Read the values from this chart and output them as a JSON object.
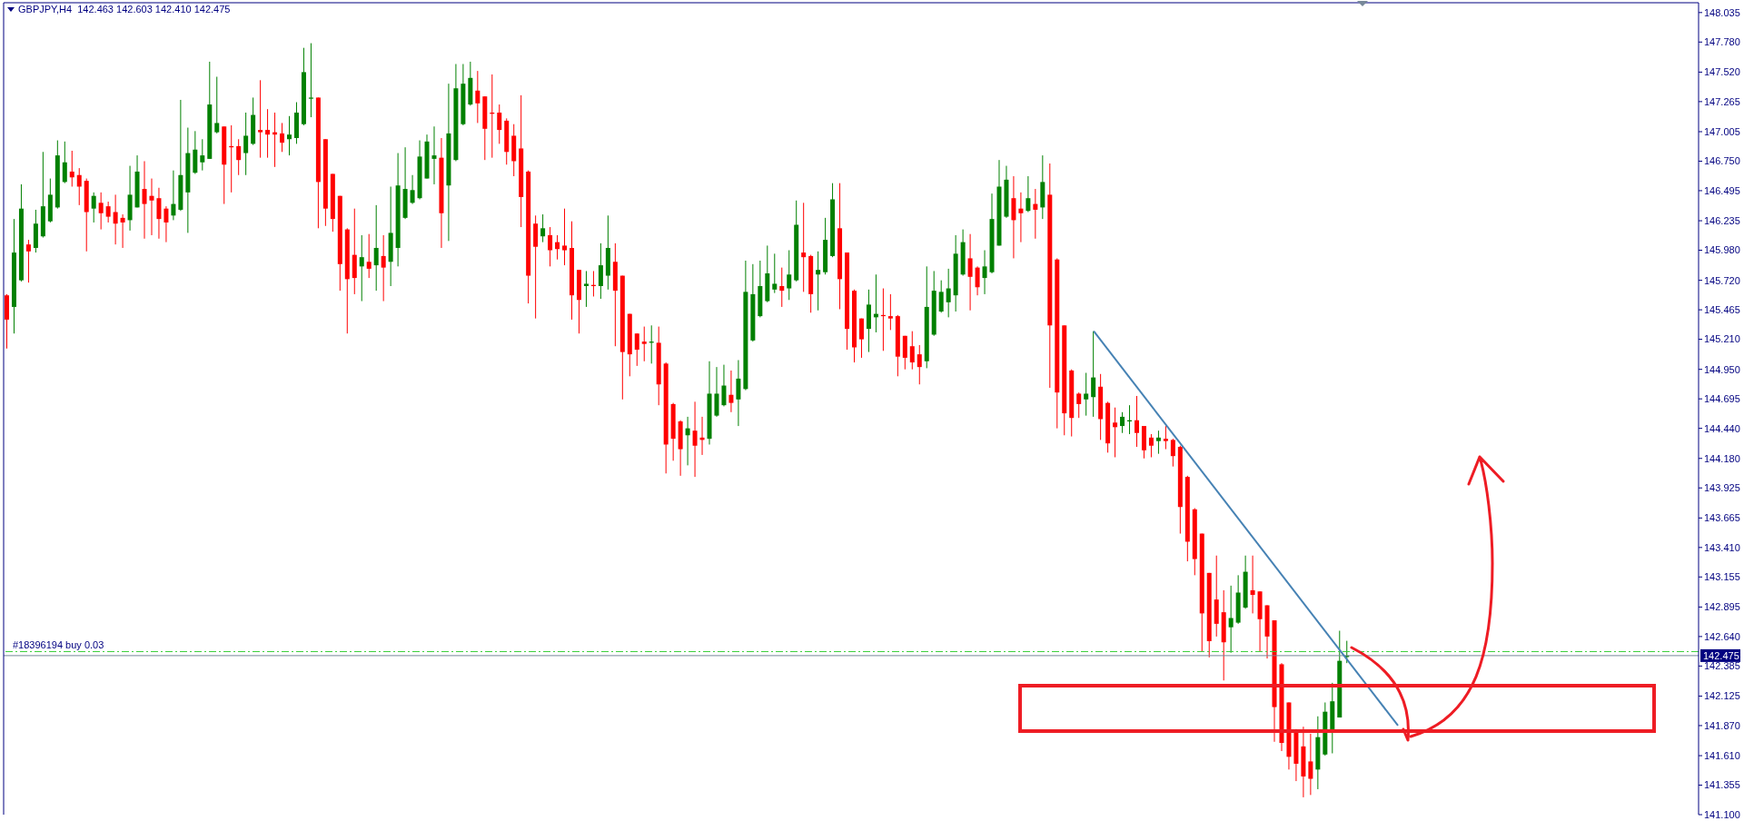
{
  "chart_data": {
    "type": "candlestick",
    "title": "GBPJPY,H4  142.463 142.603 142.410 142.475",
    "tick_labels": "y",
    "colors": [
      "#ff0000",
      "#008000",
      "#008000",
      "#ff0000",
      "#008000",
      "#008000",
      "#008000",
      "#008000",
      "#008000",
      "#ff0000",
      "#ff0000",
      "#ff0000",
      "#008000",
      "#ff0000",
      "#ff0000",
      "#ff0000",
      "#ff0000",
      "#008000",
      "#008000",
      "#ff0000",
      "#ff0000",
      "#ff0000",
      "#ff0000",
      "#008000",
      "#008000",
      "#008000",
      "#008000",
      "#008000",
      "#008000",
      "#008000",
      "#ff0000",
      "#ff0000",
      "#ff0000",
      "#008000",
      "#008000",
      "#ff0000",
      "#ff0000",
      "#ff0000",
      "#ff0000",
      "#008000",
      "#008000",
      "#008000",
      "#008000",
      "#ff0000",
      "#ff0000",
      "#ff0000",
      "#ff0000",
      "#ff0000",
      "#ff0000",
      "#008000",
      "#ff0000",
      "#008000",
      "#ff0000",
      "#008000",
      "#008000",
      "#008000",
      "#008000",
      "#008000",
      "#008000",
      "#008000",
      "#ff0000",
      "#008000",
      "#008000",
      "#008000",
      "#008000",
      "#ff0000",
      "#ff0000",
      "#ff0000",
      "#ff0000",
      "#ff0000",
      "#ff0000",
      "#ff0000",
      "#ff0000",
      "#ff0000",
      "#008000",
      "#ff0000",
      "#ff0000",
      "#ff0000",
      "#ff0000",
      "#ff0000",
      "#008000",
      "#ff0000",
      "#008000",
      "#008000",
      "#ff0000",
      "#ff0000",
      "#ff0000",
      "#ff0000",
      "#ff0000",
      "#008000",
      "#ff0000",
      "#ff0000",
      "#ff0000",
      "#ff0000",
      "#008000",
      "#ff0000",
      "#ff0000",
      "#008000",
      "#008000",
      "#008000",
      "#ff0000",
      "#008000",
      "#008000",
      "#008000",
      "#008000",
      "#008000",
      "#008000",
      "#ff0000",
      "#008000",
      "#008000",
      "#ff0000",
      "#ff0000",
      "#008000",
      "#008000",
      "#008000",
      "#ff0000",
      "#ff0000",
      "#ff0000",
      "#ff0000",
      "#008000",
      "#008000",
      "#ff0000",
      "#ff0000",
      "#ff0000",
      "#ff0000",
      "#ff0000",
      "#ff0000",
      "#008000",
      "#008000",
      "#008000",
      "#008000",
      "#008000",
      "#008000",
      "#ff0000",
      "#ff0000",
      "#008000",
      "#008000",
      "#008000",
      "#008000",
      "#ff0000",
      "#ff0000",
      "#008000",
      "#ff0000",
      "#008000",
      "#ff0000",
      "#ff0000",
      "#ff0000",
      "#ff0000",
      "#ff0000",
      "#008000",
      "#008000",
      "#ff0000",
      "#ff0000",
      "#ff0000",
      "#008000",
      "#008000",
      "#ff0000",
      "#ff0000",
      "#ff0000",
      "#008000",
      "#ff0000",
      "#ff0000",
      "#ff0000",
      "#ff0000",
      "#ff0000",
      "#ff0000",
      "#ff0000",
      "#ff0000",
      "#ff0000",
      "#008000",
      "#008000",
      "#008000",
      "#ff0000",
      "#ff0000",
      "#ff0000",
      "#ff0000",
      "#ff0000",
      "#ff0000",
      "#ff0000",
      "#ff0000",
      "#ff0000",
      "#008000",
      "#008000",
      "#008000",
      "#008000",
      "#008000",
      null,
      null,
      null,
      null,
      null,
      null,
      null,
      null,
      null,
      null,
      null,
      null,
      null,
      null,
      null,
      null,
      null,
      null,
      null,
      null,
      null,
      null,
      null,
      null,
      null,
      null,
      null,
      null,
      null,
      null,
      null,
      null,
      null,
      null,
      null,
      null,
      null,
      null,
      null,
      null,
      null,
      null,
      null,
      null,
      null,
      null,
      null,
      null
    ],
    "categories": [
      null,
      null,
      null,
      null,
      null,
      null,
      null,
      null,
      null,
      null,
      null,
      null,
      null,
      null,
      null,
      null,
      null,
      null,
      null,
      null,
      null,
      null,
      null,
      null,
      null,
      null,
      null,
      null,
      null,
      null,
      null,
      null,
      null,
      null,
      null,
      null,
      null,
      null,
      null,
      null,
      null,
      null,
      null,
      null,
      null,
      null,
      null,
      null,
      null,
      null,
      null,
      null,
      null,
      null,
      null,
      null,
      null,
      null,
      null,
      null,
      null,
      null,
      null,
      null,
      null,
      null,
      null,
      null,
      null,
      null,
      null,
      null,
      null,
      null,
      null,
      null,
      null,
      null,
      null,
      null,
      null,
      null,
      null,
      null,
      null,
      null,
      null,
      null,
      null,
      null,
      null,
      null,
      null,
      null,
      null,
      null,
      null,
      null,
      null,
      null,
      null,
      null,
      null,
      null,
      null,
      null,
      null,
      null,
      null,
      null,
      null,
      null,
      null,
      null,
      null,
      null,
      null,
      null,
      null,
      null,
      null,
      null,
      null,
      null,
      null,
      null,
      null,
      null,
      null,
      null,
      null,
      null,
      null,
      null,
      null,
      null,
      null,
      null,
      null,
      null,
      null,
      null,
      null,
      null,
      null,
      null,
      null,
      null,
      null,
      null,
      null,
      null,
      null,
      null,
      null,
      null,
      null,
      null,
      null,
      null,
      null,
      null,
      null,
      null,
      null,
      null,
      null,
      null,
      null,
      null,
      null,
      null,
      null,
      null,
      null,
      null,
      null,
      null,
      null,
      null,
      null,
      null,
      null,
      null,
      null,
      null,
      null,
      null,
      null,
      null,
      null,
      null,
      null,
      null,
      null,
      null,
      null,
      null,
      null,
      null,
      null,
      null,
      null,
      null,
      null,
      null,
      null,
      null,
      null,
      null,
      null,
      null,
      null,
      null,
      null,
      null,
      null,
      null,
      null,
      null,
      null,
      null,
      null,
      null,
      null,
      null,
      null,
      null,
      null,
      null,
      null,
      null,
      null,
      null
    ],
    "ohlc": [
      [
        145.59,
        145.6,
        145.13,
        145.38
      ],
      [
        145.49,
        146.25,
        145.26,
        145.96
      ],
      [
        145.72,
        146.55,
        145.71,
        146.34
      ],
      [
        146.03,
        146.07,
        145.7,
        145.97
      ],
      [
        146.0,
        146.33,
        145.96,
        146.21
      ],
      [
        146.1,
        146.83,
        146.09,
        146.36
      ],
      [
        146.23,
        146.6,
        146.22,
        146.46
      ],
      [
        146.35,
        146.93,
        146.34,
        146.8
      ],
      [
        146.57,
        146.92,
        146.56,
        146.74
      ],
      [
        146.66,
        146.84,
        146.53,
        146.61
      ],
      [
        146.63,
        146.69,
        146.37,
        146.53
      ],
      [
        146.58,
        146.6,
        145.97,
        146.31
      ],
      [
        146.34,
        146.48,
        146.22,
        146.45
      ],
      [
        146.39,
        146.48,
        146.16,
        146.3
      ],
      [
        146.36,
        146.4,
        146.22,
        146.27
      ],
      [
        146.31,
        146.46,
        146.03,
        146.21
      ],
      [
        146.26,
        146.29,
        146.0,
        146.22
      ],
      [
        146.24,
        146.71,
        146.15,
        146.46
      ],
      [
        146.35,
        146.8,
        146.35,
        146.66
      ],
      [
        146.51,
        146.75,
        146.08,
        146.38
      ],
      [
        146.45,
        146.6,
        146.11,
        146.41
      ],
      [
        146.43,
        146.52,
        146.08,
        146.25
      ],
      [
        146.34,
        146.36,
        146.05,
        146.22
      ],
      [
        146.28,
        146.67,
        146.24,
        146.38
      ],
      [
        146.33,
        147.28,
        146.32,
        146.63
      ],
      [
        146.48,
        147.04,
        146.13,
        146.82
      ],
      [
        146.65,
        147.01,
        146.64,
        146.85
      ],
      [
        146.74,
        146.94,
        146.67,
        146.8
      ],
      [
        146.77,
        147.61,
        146.77,
        147.24
      ],
      [
        147.0,
        147.48,
        146.99,
        147.08
      ],
      [
        147.05,
        147.05,
        146.38,
        146.72
      ],
      [
        146.88,
        147.06,
        146.48,
        146.87
      ],
      [
        146.88,
        146.94,
        146.63,
        146.76
      ],
      [
        146.82,
        147.17,
        146.63,
        146.97
      ],
      [
        146.9,
        147.3,
        146.89,
        147.15
      ],
      [
        147.02,
        147.45,
        146.78,
        147.0
      ],
      [
        147.02,
        147.2,
        146.78,
        146.98
      ],
      [
        147.0,
        147.17,
        146.7,
        146.98
      ],
      [
        146.99,
        147.08,
        146.83,
        146.91
      ],
      [
        146.94,
        147.14,
        146.8,
        146.98
      ],
      [
        146.95,
        147.26,
        146.9,
        147.17
      ],
      [
        147.07,
        147.73,
        147.06,
        147.52
      ],
      [
        147.29,
        147.77,
        147.13,
        147.3
      ],
      [
        147.3,
        147.3,
        146.17,
        146.57
      ],
      [
        146.94,
        146.94,
        146.19,
        146.34
      ],
      [
        146.64,
        146.64,
        146.14,
        146.25
      ],
      [
        146.45,
        146.45,
        145.63,
        145.86
      ],
      [
        146.16,
        146.17,
        145.26,
        145.73
      ],
      [
        145.94,
        146.34,
        145.6,
        145.74
      ],
      [
        145.84,
        146.11,
        145.54,
        145.92
      ],
      [
        145.88,
        146.12,
        145.74,
        145.82
      ],
      [
        145.85,
        146.37,
        145.63,
        146.0
      ],
      [
        145.93,
        146.11,
        145.54,
        145.83
      ],
      [
        145.88,
        146.53,
        145.67,
        146.13
      ],
      [
        146.0,
        146.82,
        145.84,
        146.54
      ],
      [
        146.26,
        146.87,
        146.25,
        146.51
      ],
      [
        146.39,
        146.63,
        146.38,
        146.5
      ],
      [
        146.43,
        146.93,
        146.42,
        146.79
      ],
      [
        146.6,
        146.98,
        146.6,
        146.92
      ],
      [
        146.77,
        147.05,
        146.55,
        146.8
      ],
      [
        146.78,
        146.95,
        146.0,
        146.3
      ],
      [
        146.54,
        147.42,
        146.06,
        146.99
      ],
      [
        146.76,
        147.59,
        146.75,
        147.38
      ],
      [
        147.07,
        147.59,
        147.06,
        147.42
      ],
      [
        147.24,
        147.61,
        147.23,
        147.47
      ],
      [
        147.36,
        147.53,
        147.08,
        147.25
      ],
      [
        147.31,
        147.31,
        146.76,
        147.03
      ],
      [
        147.17,
        147.5,
        146.78,
        147.16
      ],
      [
        147.17,
        147.24,
        146.9,
        147.02
      ],
      [
        147.1,
        147.12,
        146.72,
        146.83
      ],
      [
        146.97,
        147.07,
        146.62,
        146.75
      ],
      [
        146.86,
        147.32,
        146.18,
        146.44
      ],
      [
        146.66,
        146.67,
        145.52,
        145.76
      ],
      [
        146.21,
        146.28,
        145.39,
        146.01
      ],
      [
        146.1,
        146.29,
        146.05,
        146.17
      ],
      [
        146.11,
        146.18,
        145.84,
        145.98
      ],
      [
        146.05,
        146.11,
        145.9,
        145.99
      ],
      [
        146.02,
        146.34,
        145.85,
        145.98
      ],
      [
        146.0,
        146.23,
        145.38,
        145.59
      ],
      [
        145.81,
        145.81,
        145.26,
        145.55
      ],
      [
        145.67,
        145.8,
        145.49,
        145.69
      ],
      [
        145.68,
        145.8,
        145.58,
        145.67
      ],
      [
        145.67,
        146.04,
        145.56,
        145.85
      ],
      [
        145.76,
        146.28,
        145.64,
        146.0
      ],
      [
        145.88,
        146.04,
        145.15,
        145.63
      ],
      [
        145.76,
        145.76,
        144.69,
        145.1
      ],
      [
        145.43,
        145.43,
        144.89,
        145.08
      ],
      [
        145.26,
        145.26,
        144.98,
        145.12
      ],
      [
        145.19,
        145.32,
        145.02,
        145.17
      ],
      [
        145.18,
        145.33,
        145.0,
        145.19
      ],
      [
        145.18,
        145.32,
        144.64,
        144.82
      ],
      [
        145.0,
        145.01,
        144.05,
        144.3
      ],
      [
        144.65,
        144.66,
        144.16,
        144.35
      ],
      [
        144.5,
        144.51,
        144.03,
        144.26
      ],
      [
        144.38,
        144.54,
        144.12,
        144.44
      ],
      [
        144.42,
        144.67,
        144.02,
        144.29
      ],
      [
        144.36,
        144.54,
        144.21,
        144.34
      ],
      [
        144.35,
        145.02,
        144.3,
        144.74
      ],
      [
        144.55,
        144.97,
        144.54,
        144.74
      ],
      [
        144.64,
        144.99,
        144.63,
        144.81
      ],
      [
        144.73,
        144.94,
        144.58,
        144.66
      ],
      [
        144.69,
        145.03,
        144.46,
        144.87
      ],
      [
        144.78,
        145.89,
        144.77,
        145.62
      ],
      [
        145.2,
        145.86,
        145.19,
        145.6
      ],
      [
        145.41,
        145.89,
        145.4,
        145.67
      ],
      [
        145.54,
        146.02,
        145.53,
        145.78
      ],
      [
        145.64,
        145.95,
        145.61,
        145.69
      ],
      [
        145.67,
        145.83,
        145.49,
        145.63
      ],
      [
        145.65,
        145.98,
        145.55,
        145.77
      ],
      [
        145.72,
        146.41,
        145.71,
        146.2
      ],
      [
        145.96,
        146.39,
        145.62,
        145.92
      ],
      [
        145.93,
        145.94,
        145.44,
        145.6
      ],
      [
        145.77,
        145.97,
        145.46,
        145.81
      ],
      [
        145.79,
        146.26,
        145.77,
        146.07
      ],
      [
        145.93,
        146.56,
        145.92,
        146.42
      ],
      [
        146.17,
        146.56,
        145.47,
        145.73
      ],
      [
        145.96,
        145.96,
        145.12,
        145.3
      ],
      [
        145.63,
        145.64,
        145.01,
        145.14
      ],
      [
        145.39,
        145.39,
        145.05,
        145.21
      ],
      [
        145.3,
        145.64,
        145.1,
        145.51
      ],
      [
        145.4,
        145.77,
        145.27,
        145.43
      ],
      [
        145.42,
        145.65,
        145.11,
        145.41
      ],
      [
        145.41,
        145.6,
        145.29,
        145.39
      ],
      [
        145.41,
        145.42,
        144.89,
        145.06
      ],
      [
        145.24,
        145.24,
        144.95,
        145.05
      ],
      [
        145.15,
        145.28,
        144.95,
        145.01
      ],
      [
        145.08,
        145.16,
        144.82,
        144.97
      ],
      [
        145.02,
        145.84,
        144.96,
        145.49
      ],
      [
        145.25,
        145.8,
        145.24,
        145.63
      ],
      [
        145.45,
        145.72,
        145.44,
        145.62
      ],
      [
        145.53,
        145.82,
        145.4,
        145.65
      ],
      [
        145.59,
        146.11,
        145.45,
        145.95
      ],
      [
        145.77,
        146.16,
        145.76,
        146.05
      ],
      [
        145.91,
        146.12,
        145.46,
        145.75
      ],
      [
        145.83,
        145.84,
        145.59,
        145.66
      ],
      [
        145.74,
        145.98,
        145.6,
        145.84
      ],
      [
        145.79,
        146.47,
        145.78,
        146.25
      ],
      [
        146.02,
        146.76,
        146.02,
        146.53
      ],
      [
        146.27,
        146.71,
        146.26,
        146.59
      ],
      [
        146.43,
        146.62,
        145.91,
        146.24
      ],
      [
        146.34,
        146.48,
        146.05,
        146.3
      ],
      [
        146.32,
        146.62,
        146.31,
        146.43
      ],
      [
        146.38,
        146.51,
        146.08,
        146.33
      ],
      [
        146.35,
        146.8,
        146.25,
        146.57
      ],
      [
        146.46,
        146.73,
        144.79,
        145.33
      ],
      [
        145.9,
        145.91,
        144.44,
        144.75
      ],
      [
        145.33,
        145.33,
        144.38,
        144.57
      ],
      [
        144.94,
        144.95,
        144.37,
        144.53
      ],
      [
        144.74,
        144.75,
        144.53,
        144.65
      ],
      [
        144.69,
        144.92,
        144.55,
        144.74
      ],
      [
        144.71,
        145.28,
        144.54,
        144.88
      ],
      [
        144.8,
        144.91,
        144.34,
        144.52
      ],
      [
        144.66,
        144.67,
        144.23,
        144.31
      ],
      [
        144.49,
        144.62,
        144.19,
        144.45
      ],
      [
        144.46,
        144.58,
        144.4,
        144.54
      ],
      [
        144.5,
        144.64,
        144.39,
        144.51
      ],
      [
        144.51,
        144.72,
        144.28,
        144.4
      ],
      [
        144.46,
        144.46,
        144.18,
        144.25
      ],
      [
        144.36,
        144.39,
        144.19,
        144.29
      ],
      [
        144.33,
        144.42,
        144.22,
        144.36
      ],
      [
        144.35,
        144.46,
        144.26,
        144.33
      ],
      [
        144.34,
        144.35,
        144.11,
        144.2
      ],
      [
        144.28,
        144.29,
        143.53,
        143.76
      ],
      [
        144.02,
        144.03,
        143.29,
        143.46
      ],
      [
        143.74,
        143.75,
        143.17,
        143.31
      ],
      [
        143.53,
        143.53,
        142.51,
        142.84
      ],
      [
        143.19,
        143.19,
        142.46,
        142.6
      ],
      [
        142.96,
        143.34,
        142.64,
        142.75
      ],
      [
        142.85,
        143.04,
        142.26,
        142.59
      ],
      [
        142.72,
        143.08,
        142.5,
        142.8
      ],
      [
        142.76,
        143.17,
        142.75,
        143.02
      ],
      [
        142.89,
        143.34,
        142.88,
        143.2
      ],
      [
        143.04,
        143.34,
        142.84,
        143.0
      ],
      [
        143.03,
        143.03,
        142.51,
        142.79
      ],
      [
        142.91,
        142.91,
        142.45,
        142.64
      ],
      [
        142.78,
        142.78,
        141.73,
        142.03
      ],
      [
        142.4,
        142.41,
        141.65,
        141.72
      ],
      [
        142.07,
        142.07,
        141.49,
        141.6
      ],
      [
        141.83,
        141.84,
        141.39,
        141.54
      ],
      [
        141.69,
        141.86,
        141.25,
        141.43
      ],
      [
        141.56,
        141.8,
        141.27,
        141.41
      ],
      [
        141.49,
        141.95,
        141.32,
        141.77
      ],
      [
        141.62,
        142.07,
        141.61,
        141.99
      ],
      [
        141.81,
        142.24,
        141.63,
        142.08
      ],
      [
        141.94,
        142.69,
        141.94,
        142.43
      ],
      [
        142.463,
        142.603,
        142.41,
        142.475
      ],
      null,
      null,
      null,
      null,
      null,
      null,
      null,
      null,
      null,
      null,
      null,
      null,
      null,
      null,
      null,
      null,
      null,
      null,
      null,
      null,
      null,
      null,
      null,
      null,
      null,
      null,
      null,
      null,
      null,
      null,
      null,
      null,
      null,
      null,
      null,
      null,
      null,
      null,
      null,
      null,
      null,
      null,
      null,
      null,
      null,
      null,
      null,
      null
    ],
    "series": [
      {
        "type": "line",
        "color": "#4682b4",
        "values": [
          null,
          null,
          null,
          null,
          null,
          null,
          null,
          null,
          null,
          null,
          null,
          null,
          null,
          null,
          null,
          null,
          null,
          null,
          null,
          null,
          null,
          null,
          null,
          null,
          null,
          null,
          null,
          null,
          null,
          null,
          null,
          null,
          null,
          null,
          null,
          null,
          null,
          null,
          null,
          null,
          null,
          null,
          null,
          null,
          null,
          null,
          null,
          null,
          null,
          null,
          null,
          null,
          null,
          null,
          null,
          null,
          null,
          null,
          null,
          null,
          null,
          null,
          null,
          null,
          null,
          null,
          null,
          null,
          null,
          null,
          null,
          null,
          null,
          null,
          null,
          null,
          null,
          null,
          null,
          null,
          null,
          null,
          null,
          null,
          null,
          null,
          null,
          null,
          null,
          null,
          null,
          null,
          null,
          null,
          null,
          null,
          null,
          null,
          null,
          null,
          null,
          null,
          null,
          null,
          null,
          null,
          null,
          null,
          null,
          null,
          null,
          null,
          null,
          null,
          null,
          null,
          null,
          null,
          null,
          null,
          null,
          null,
          null,
          null,
          null,
          null,
          null,
          null,
          null,
          null,
          null,
          null,
          null,
          null,
          null,
          null,
          null,
          null,
          null,
          null,
          null,
          null,
          null,
          null,
          null,
          null,
          null,
          null,
          null,
          null,
          145.28,
          null,
          null,
          null,
          null,
          null,
          null,
          null,
          null,
          null,
          null,
          null,
          null,
          null,
          null,
          null,
          null,
          null,
          null,
          null,
          null,
          null,
          null,
          null,
          null,
          null,
          null,
          null,
          null,
          null,
          null,
          null,
          null,
          null,
          null,
          null,
          null,
          null,
          null,
          null,
          null,
          null,
          141.87,
          null,
          null,
          null,
          null,
          null,
          null,
          null,
          null,
          null,
          null,
          null,
          null,
          null,
          null,
          null,
          null,
          null,
          null,
          null,
          null,
          null,
          null,
          null,
          null,
          null,
          null,
          null,
          null,
          null,
          null,
          null,
          null,
          null,
          null,
          null,
          null,
          null,
          null,
          null,
          null,
          null
        ]
      }
    ],
    "ref_lines": [
      {
        "axis": "y",
        "value": 142.51,
        "label": "#18396194 buy 0.03",
        "color": "#32cd32",
        "line_style": "dashed"
      },
      {
        "axis": "y",
        "value": 142.475,
        "label": "142.475",
        "color": "#778899",
        "line_style": "solid"
      }
    ],
    "ylim": [
      141.1,
      148.12
    ],
    "yticks": [
      {
        "value": 141.1,
        "label": "141.100"
      },
      {
        "value": 141.355,
        "label": "141.355"
      },
      {
        "value": 141.61,
        "label": "141.610"
      },
      {
        "value": 141.87,
        "label": "141.870"
      },
      {
        "value": 142.125,
        "label": "142.125"
      },
      {
        "value": 142.385,
        "label": "142.385"
      },
      {
        "value": 142.64,
        "label": "142.640"
      },
      {
        "value": 142.895,
        "label": "142.895"
      },
      {
        "value": 143.155,
        "label": "143.155"
      },
      {
        "value": 143.41,
        "label": "143.410"
      },
      {
        "value": 143.665,
        "label": "143.665"
      },
      {
        "value": 143.925,
        "label": "143.925"
      },
      {
        "value": 144.18,
        "label": "144.180"
      },
      {
        "value": 144.44,
        "label": "144.440"
      },
      {
        "value": 144.695,
        "label": "144.695"
      },
      {
        "value": 144.95,
        "label": "144.950"
      },
      {
        "value": 145.21,
        "label": "145.210"
      },
      {
        "value": 145.465,
        "label": "145.465"
      },
      {
        "value": 145.72,
        "label": "145.720"
      },
      {
        "value": 145.98,
        "label": "145.980"
      },
      {
        "value": 146.235,
        "label": "146.235"
      },
      {
        "value": 146.495,
        "label": "146.495"
      },
      {
        "value": 146.75,
        "label": "146.750"
      },
      {
        "value": 147.005,
        "label": "147.005"
      },
      {
        "value": 147.265,
        "label": "147.265"
      },
      {
        "value": 147.52,
        "label": "147.520"
      },
      {
        "value": 147.78,
        "label": "147.780"
      },
      {
        "value": 148.035,
        "label": "148.035"
      }
    ]
  }
}
